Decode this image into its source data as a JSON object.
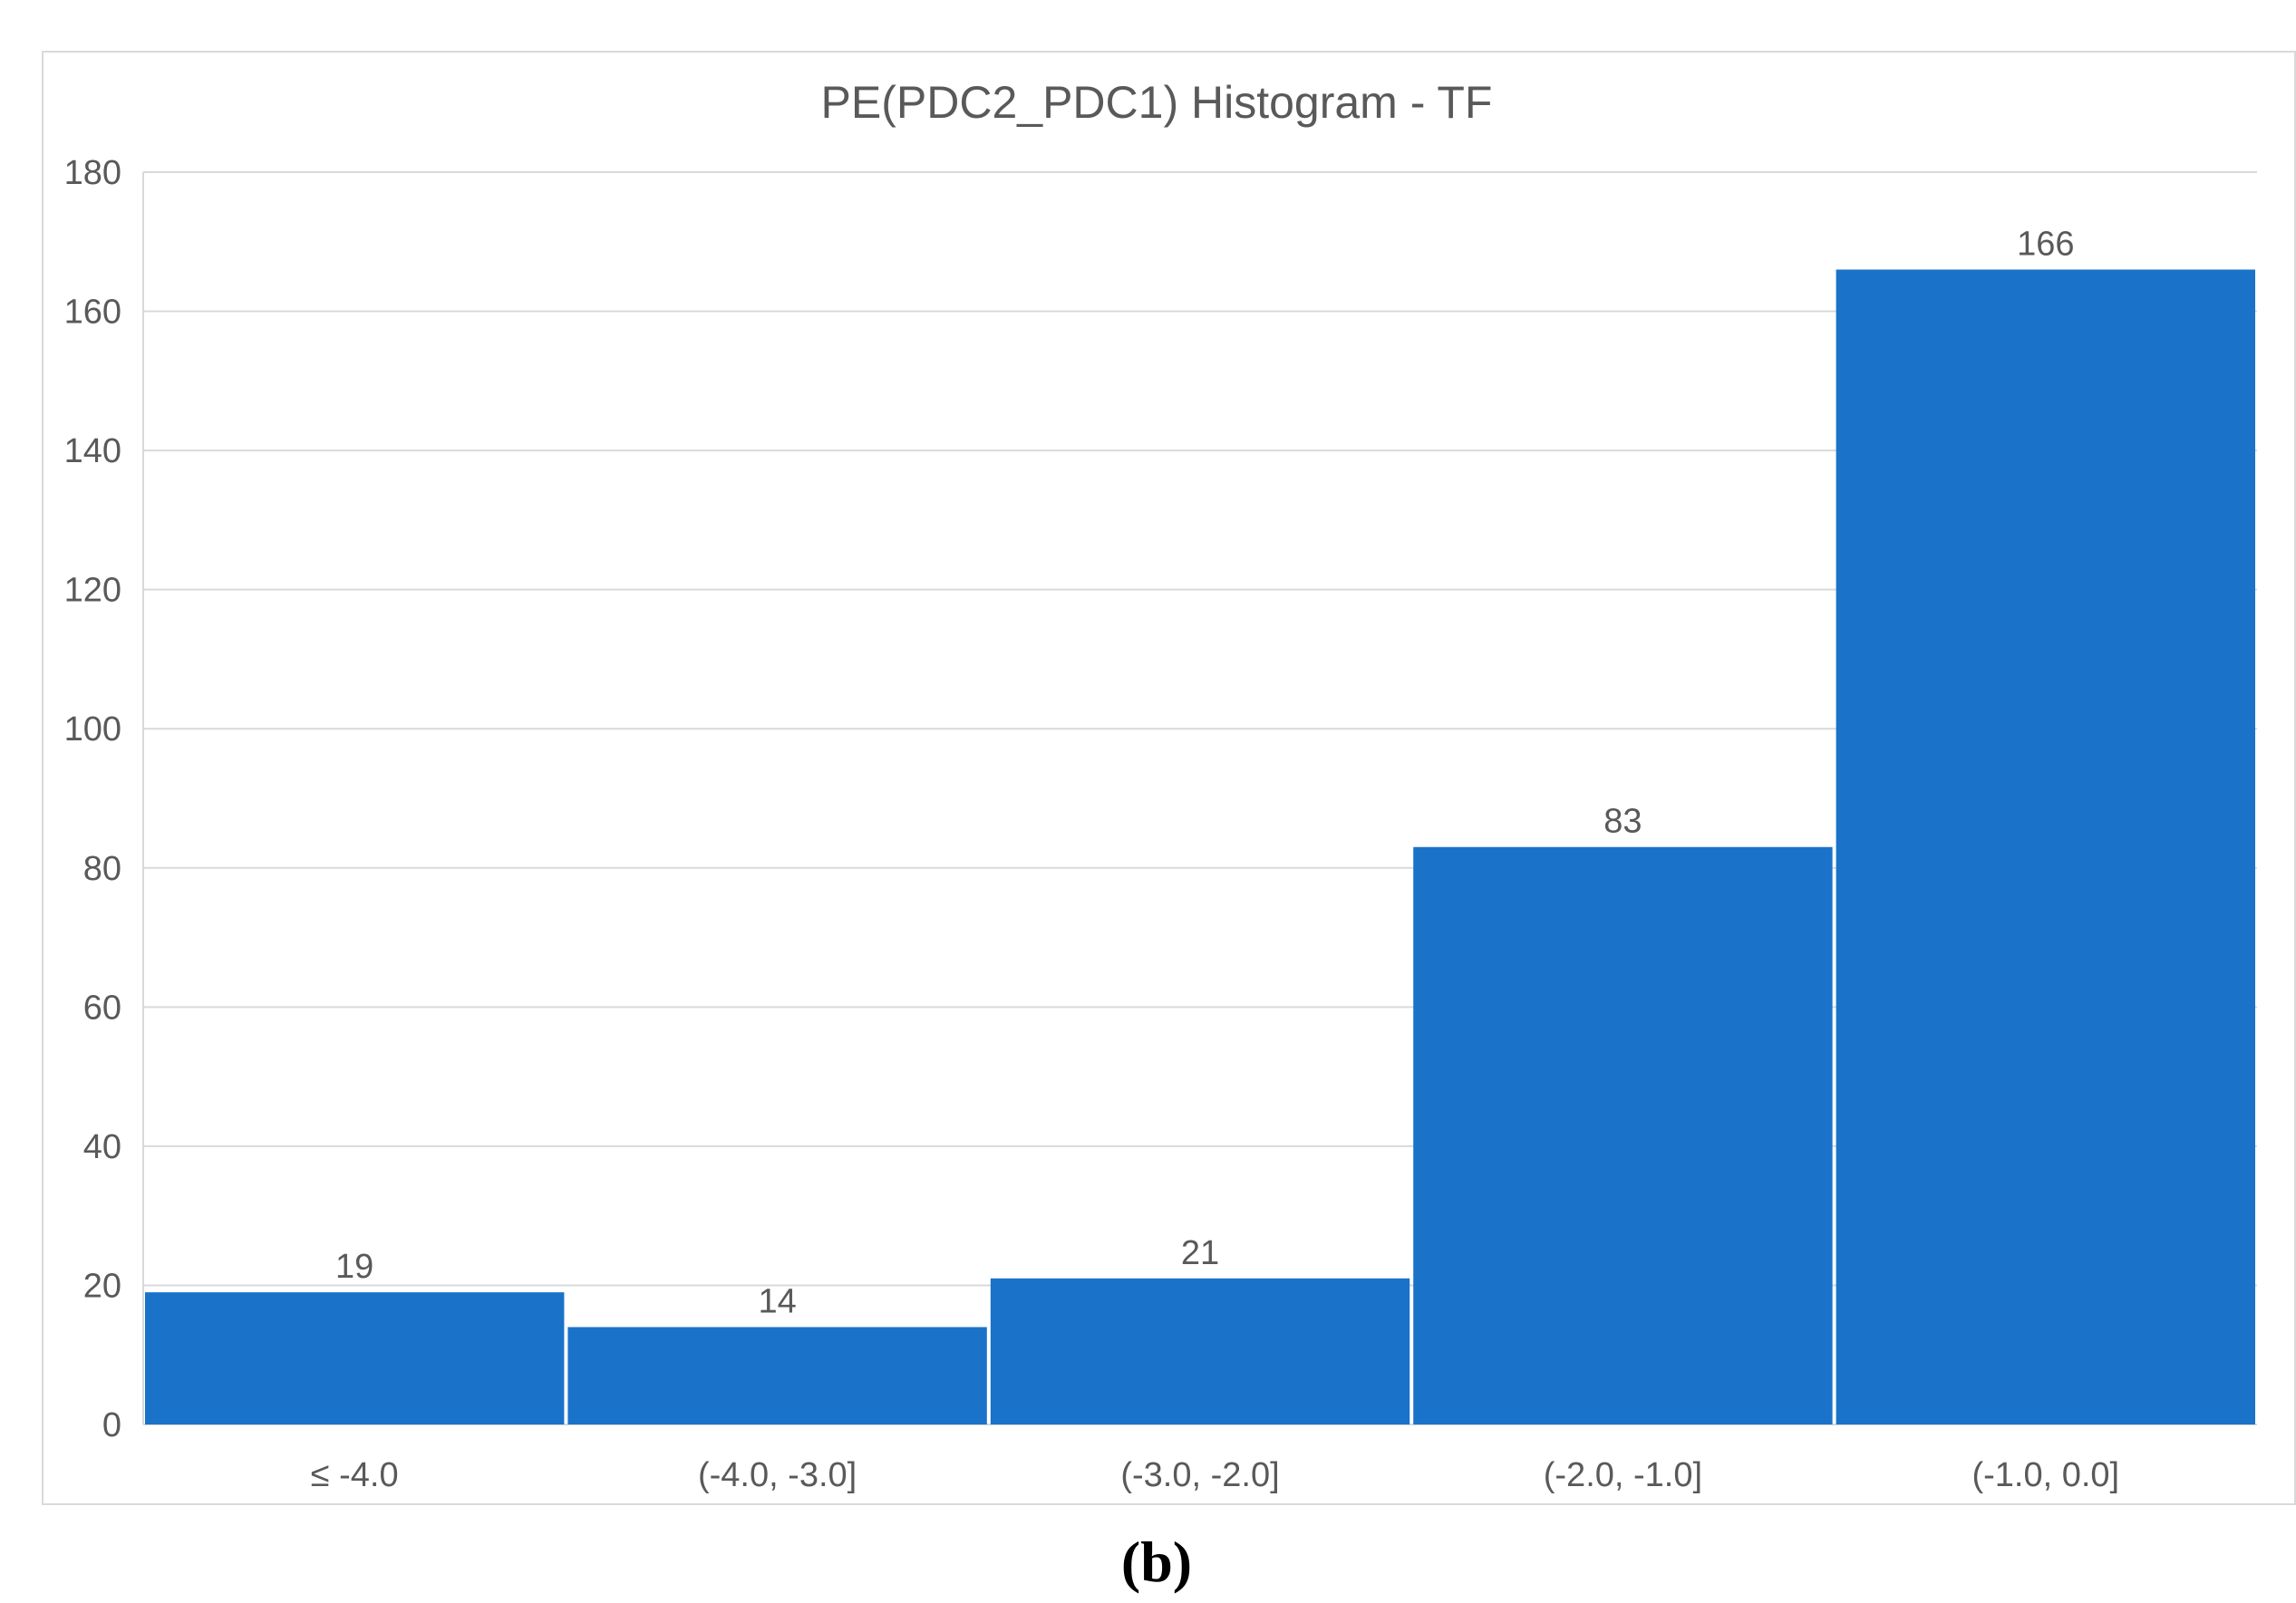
{
  "chart_data": {
    "type": "bar",
    "title": "PE(PDC2_PDC1) Histogram - TF",
    "categories": [
      "≤ -4.0",
      "(-4.0, -3.0]",
      "(-3.0, -2.0]",
      "(-2.0, -1.0]",
      "(-1.0, 0.0]"
    ],
    "values": [
      19,
      14,
      21,
      83,
      166
    ],
    "ylim": [
      0,
      180
    ],
    "yticks": [
      0,
      20,
      40,
      60,
      80,
      100,
      120,
      140,
      160,
      180
    ],
    "grid": true,
    "legend": "none",
    "bar_color": "#1a73c9",
    "grid_color": "#d9d9d9"
  },
  "caption": "(b)"
}
